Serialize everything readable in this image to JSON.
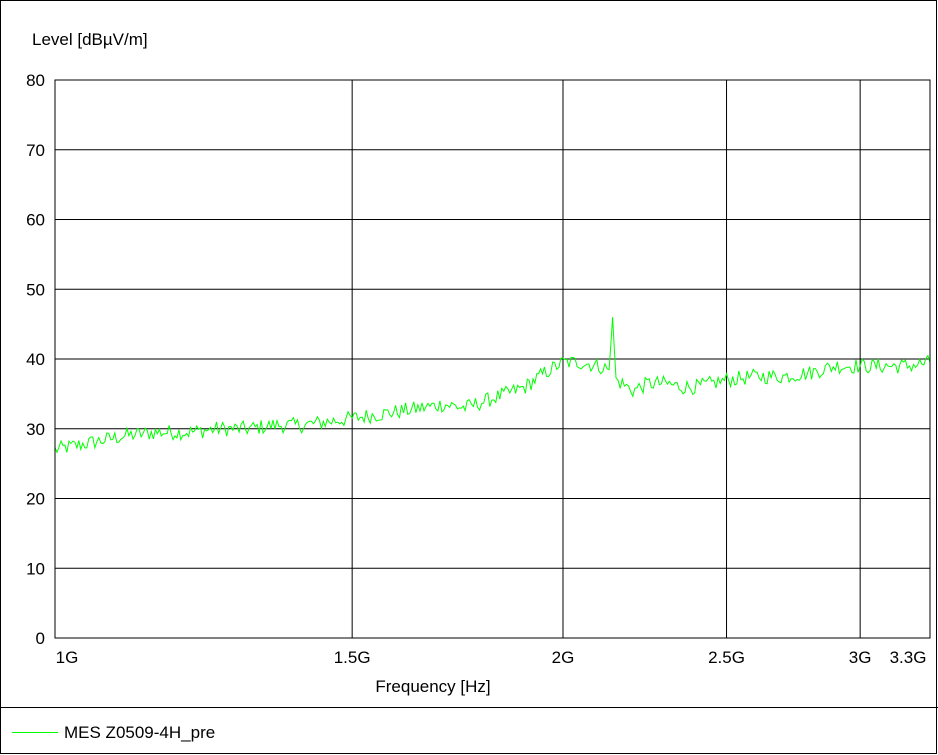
{
  "chart_data": {
    "type": "line",
    "xlabel": "Frequency [Hz]",
    "ylabel": "Level [dBµV/m]",
    "x_scale": "log",
    "xlim": [
      1000000000,
      3300000000
    ],
    "ylim": [
      0,
      80
    ],
    "x_ticks": [
      {
        "value": 1000000000,
        "label": "1G"
      },
      {
        "value": 1500000000,
        "label": "1.5G"
      },
      {
        "value": 2000000000,
        "label": "2G"
      },
      {
        "value": 2500000000,
        "label": "2.5G"
      },
      {
        "value": 3000000000,
        "label": "3G"
      },
      {
        "value": 3300000000,
        "label": "3.3G"
      }
    ],
    "x_grid": [
      1000000000,
      1500000000,
      2000000000,
      2500000000,
      3000000000
    ],
    "y_ticks": [
      0,
      10,
      20,
      30,
      40,
      50,
      60,
      70,
      80
    ],
    "grid": true,
    "legend_position": "bottom-left",
    "series": [
      {
        "name": "MES  Z0509-4H_pre",
        "color": "#00ff00",
        "x": [
          1000000000,
          1050000000,
          1100000000,
          1150000000,
          1200000000,
          1250000000,
          1300000000,
          1350000000,
          1400000000,
          1450000000,
          1500000000,
          1550000000,
          1600000000,
          1650000000,
          1700000000,
          1750000000,
          1800000000,
          1850000000,
          1900000000,
          1950000000,
          2000000000,
          2050000000,
          2100000000,
          2130000000,
          2140000000,
          2150000000,
          2200000000,
          2250000000,
          2300000000,
          2350000000,
          2400000000,
          2450000000,
          2500000000,
          2600000000,
          2700000000,
          2800000000,
          2900000000,
          3000000000,
          3100000000,
          3200000000,
          3300000000
        ],
        "y": [
          27,
          28,
          29,
          29.5,
          29.5,
          30,
          30,
          30.5,
          30.5,
          31,
          31.5,
          32,
          32.5,
          33,
          33.5,
          33,
          34,
          35,
          36,
          38,
          39.5,
          39.5,
          39,
          38.5,
          46,
          37,
          35.5,
          36.5,
          36.5,
          36,
          36,
          36.5,
          37,
          37.5,
          37.5,
          38,
          39,
          39,
          39,
          39,
          39.5
        ]
      }
    ]
  }
}
